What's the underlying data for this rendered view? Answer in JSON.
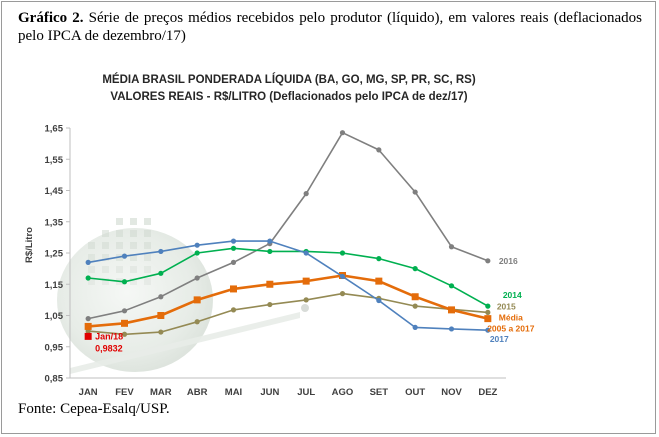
{
  "caption": {
    "label": "Gráfico 2.",
    "text": "Série de preços médios recebidos pelo produtor (líquido), em valores reais (deflacionados pelo IPCA de dezembro/17)"
  },
  "source": "Fonte: Cepea-Esalq/USP.",
  "chart_data": {
    "type": "line",
    "title": "MÉDIA BRASIL PONDERADA LÍQUIDA (BA, GO, MG, SP, PR, SC, RS)",
    "subtitle": "VALORES REAIS - R$/LITRO (Deflacionados pelo IPCA de dez/17)",
    "ylabel": "R$/Litro",
    "xlabel": "",
    "ylim": [
      0.85,
      1.65
    ],
    "yticks": [
      "0,85",
      "0,95",
      "1,05",
      "1,15",
      "1,25",
      "1,35",
      "1,45",
      "1,55",
      "1,65"
    ],
    "categories": [
      "JAN",
      "FEV",
      "MAR",
      "ABR",
      "MAI",
      "JUN",
      "JUL",
      "AGO",
      "SET",
      "OUT",
      "NOV",
      "DEZ"
    ],
    "grid": false,
    "series": [
      {
        "name": "2016",
        "color": "#7f7f7f",
        "values": [
          1.04,
          1.065,
          1.11,
          1.17,
          1.22,
          1.28,
          1.44,
          1.635,
          1.58,
          1.445,
          1.27,
          1.225
        ]
      },
      {
        "name": "2014",
        "color": "#00b050",
        "values": [
          1.17,
          1.158,
          1.185,
          1.25,
          1.265,
          1.255,
          1.255,
          1.25,
          1.232,
          1.2,
          1.145,
          1.08
        ]
      },
      {
        "name": "2015",
        "color": "#948a54",
        "values": [
          1.0,
          0.99,
          0.997,
          1.03,
          1.068,
          1.085,
          1.1,
          1.12,
          1.105,
          1.08,
          1.07,
          1.06
        ]
      },
      {
        "name": "Média 2005 a 2017",
        "color": "#e46c0a",
        "values": [
          1.015,
          1.025,
          1.05,
          1.1,
          1.135,
          1.15,
          1.16,
          1.178,
          1.16,
          1.11,
          1.068,
          1.04
        ]
      },
      {
        "name": "2017",
        "color": "#4f81bd",
        "values": [
          1.22,
          1.24,
          1.255,
          1.275,
          1.288,
          1.288,
          1.25,
          1.175,
          1.098,
          1.012,
          1.007,
          1.003
        ]
      }
    ],
    "annotation": {
      "label": "Jan/18",
      "value": "0,9832",
      "y": 0.9832,
      "color": "#e00000"
    }
  }
}
